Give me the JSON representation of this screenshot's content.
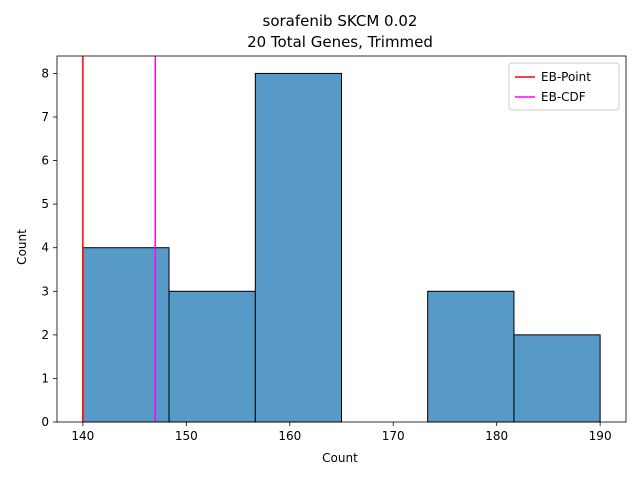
{
  "chart_data": {
    "type": "bar",
    "title": "sorafenib SKCM 0.02",
    "subtitle": "20 Total Genes, Trimmed",
    "xlabel": "Count",
    "ylabel": "Count",
    "xlim": [
      137.5,
      192.5
    ],
    "ylim": [
      0,
      8.4
    ],
    "xticks": [
      140,
      150,
      160,
      170,
      180,
      190
    ],
    "yticks": [
      0,
      1,
      2,
      3,
      4,
      5,
      6,
      7,
      8
    ],
    "bins": [
      {
        "x0": 140.0,
        "x1": 148.33,
        "count": 4
      },
      {
        "x0": 148.33,
        "x1": 156.67,
        "count": 3
      },
      {
        "x0": 156.67,
        "x1": 165.0,
        "count": 8
      },
      {
        "x0": 165.0,
        "x1": 173.33,
        "count": 0
      },
      {
        "x0": 173.33,
        "x1": 181.67,
        "count": 3
      },
      {
        "x0": 181.67,
        "x1": 190.0,
        "count": 2
      }
    ],
    "bar_color": "#5799c7",
    "vlines": [
      {
        "name": "EB-Point",
        "x": 140.0,
        "color": "#ff0000"
      },
      {
        "name": "EB-CDF",
        "x": 147.0,
        "color": "#ff00ff"
      }
    ],
    "legend_position": "top-right",
    "grid": false
  }
}
